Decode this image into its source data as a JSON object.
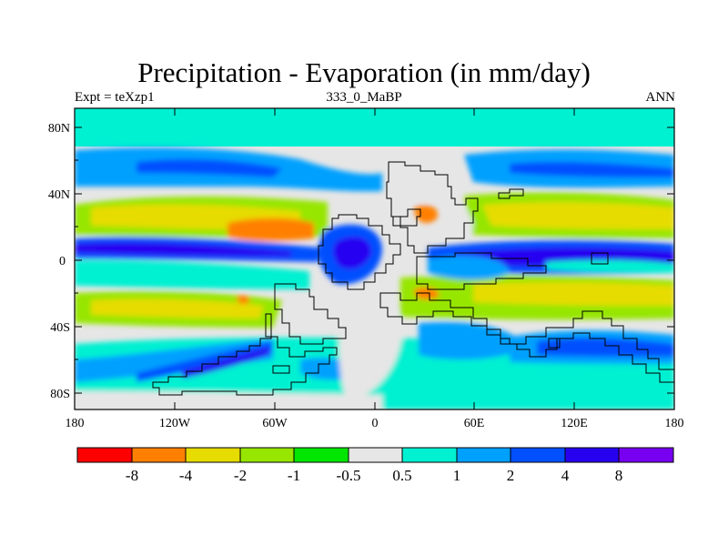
{
  "title": "Precipitation - Evaporation (in mm/day)",
  "subtitle_left": "Expt = teXzp1",
  "subtitle_center": "333_0_MaBP",
  "subtitle_right": "ANN",
  "y_ticks": [
    "80N",
    "40N",
    "0",
    "40S",
    "80S"
  ],
  "x_ticks": [
    "180",
    "120W",
    "60W",
    "0",
    "60E",
    "120E",
    "180"
  ],
  "colorbar": {
    "colors": [
      "#ff0000",
      "#ff8000",
      "#e6dc00",
      "#96e600",
      "#00e600",
      "#e6e6e6",
      "#00f0d2",
      "#00a0ff",
      "#0050ff",
      "#2800f0",
      "#7800f0"
    ],
    "labels": [
      "-8",
      "-4",
      "-2",
      "-1",
      "-0.5",
      "0.5",
      "1",
      "2",
      "4",
      "8"
    ]
  }
}
